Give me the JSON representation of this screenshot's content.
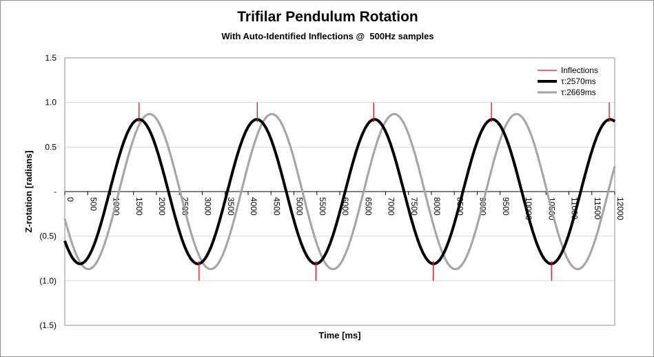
{
  "chart_data": {
    "type": "line",
    "title": "Trifilar Pendulum Rotation",
    "subtitle": "With Auto-Identified Inflections @  500Hz samples",
    "xlabel": "Time [ms]",
    "ylabel": "Z-rotation [radians]",
    "xlim": [
      0,
      12000
    ],
    "ylim": [
      -1.5,
      1.5
    ],
    "x_ticks": [
      0,
      500,
      1000,
      1500,
      2000,
      2500,
      3000,
      3500,
      4000,
      4500,
      5000,
      5500,
      6000,
      6500,
      7000,
      7500,
      8000,
      8500,
      9000,
      9500,
      10000,
      10500,
      11000,
      11500,
      12000
    ],
    "x_tick_labels": [
      "0",
      "500",
      "1000",
      "1500",
      "2000",
      "2500",
      "3000",
      "3500",
      "4000",
      "4500",
      "5000",
      "5500",
      "6000",
      "6500",
      "7000",
      "7500",
      "8000",
      "8500",
      "9000",
      "9500",
      "10000",
      "10500",
      "11000",
      "11500",
      "12000"
    ],
    "y_ticks": [
      1.5,
      1.0,
      0.5,
      0,
      -0.5,
      -1.0,
      -1.5
    ],
    "y_tick_labels": [
      "1.5",
      "1.0",
      "0.5",
      "-",
      "(0.5)",
      "(1.0)",
      "(1.5)"
    ],
    "grid": "horizontal",
    "legend_position": "top-right",
    "inflections": {
      "name": "Inflections",
      "color": "#e01010",
      "points": [
        {
          "x": 1620,
          "y": 1.0
        },
        {
          "x": 2930,
          "y": -1.0
        },
        {
          "x": 4200,
          "y": 1.0
        },
        {
          "x": 5480,
          "y": -1.0
        },
        {
          "x": 6740,
          "y": 1.0
        },
        {
          "x": 8040,
          "y": -1.0
        },
        {
          "x": 9310,
          "y": 1.0
        },
        {
          "x": 10620,
          "y": -1.0
        },
        {
          "x": 11880,
          "y": 1.0
        }
      ]
    },
    "series": [
      {
        "name": "τ:2570ms",
        "color": "#000000",
        "amplitude": 0.81,
        "period_ms": 2570,
        "peak_x": 1620
      },
      {
        "name": "τ:2669ms",
        "color": "#a6a6a6",
        "amplitude": 0.87,
        "period_ms": 2669,
        "peak_x": 1850
      }
    ]
  }
}
